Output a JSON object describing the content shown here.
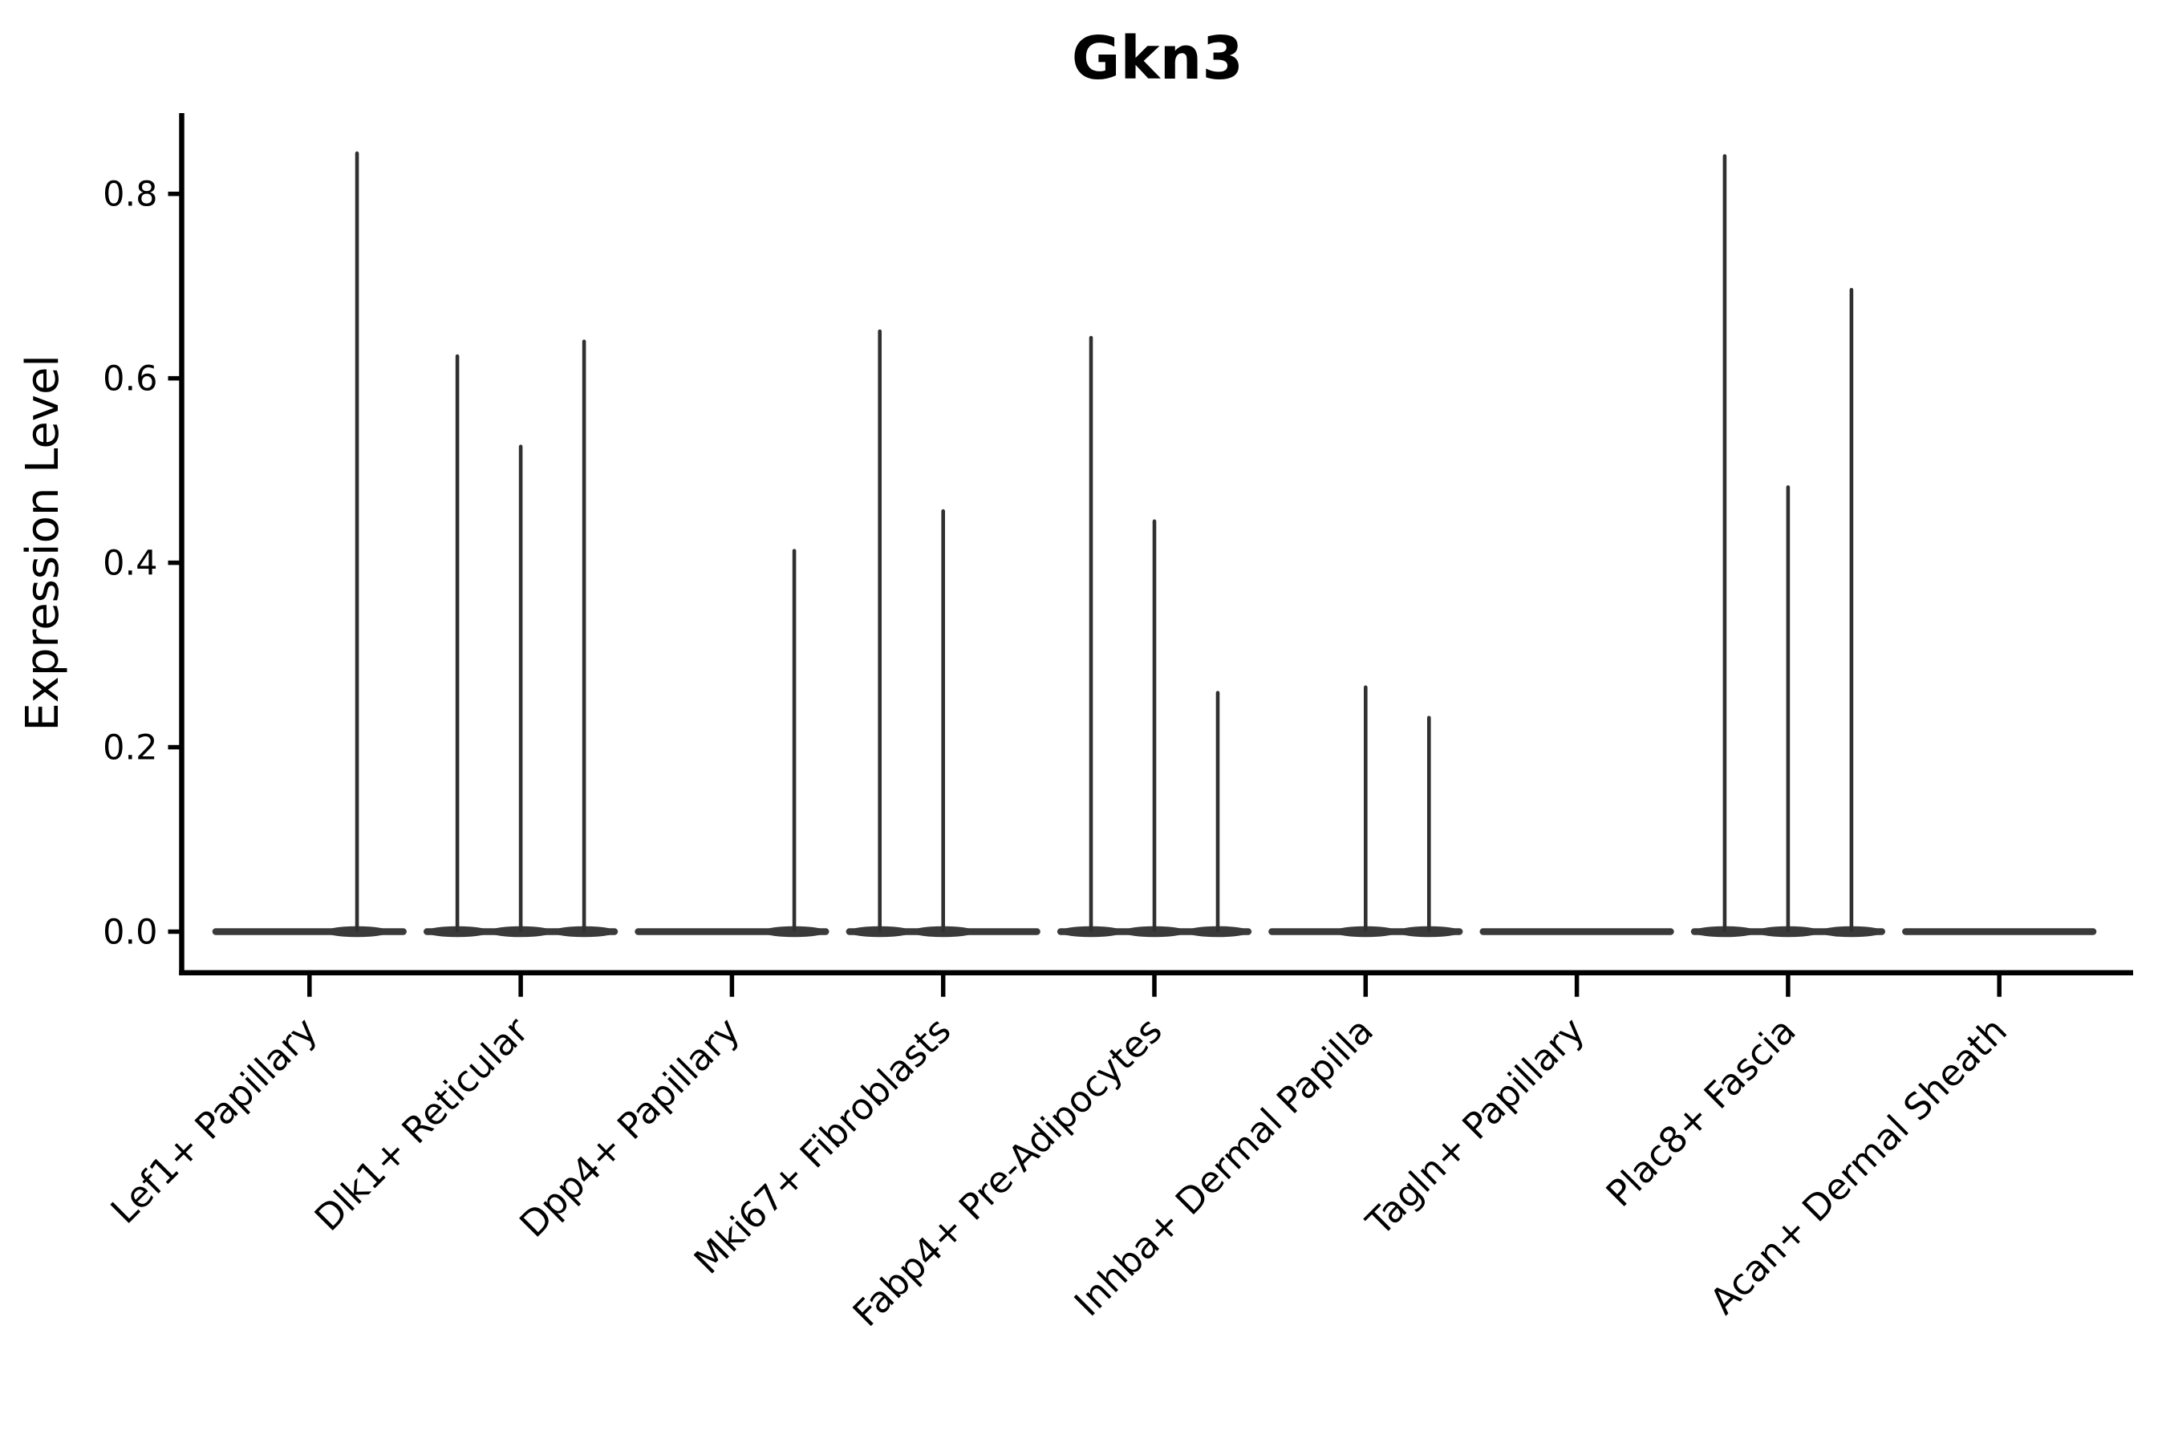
{
  "chart_data": {
    "type": "violin",
    "title": "Gkn3",
    "ylabel": "Expression Level",
    "xlabel": "",
    "yticks": [
      0.0,
      0.2,
      0.4,
      0.6,
      0.8
    ],
    "ytick_labels": [
      "0.0",
      "0.2",
      "0.4",
      "0.6",
      "0.8"
    ],
    "ylim": [
      -0.045,
      0.889
    ],
    "grid": false,
    "legend": "none",
    "x_label_rotation_deg": 45,
    "background": "#ffffff",
    "colors": {
      "violin_fill": "#3a3a3a",
      "spike": "#303030",
      "axis": "#000000",
      "text": "#000000"
    },
    "categories": [
      "Lef1+ Papillary",
      "Dlk1+ Reticular",
      "Dpp4+ Papillary",
      "Mki67+ Fibroblasts",
      "Fabp4+ Pre-Adipocytes",
      "Inhba+ Dermal Papilla",
      "Tagln+ Papillary",
      "Plac8+ Fascia",
      "Acan+ Dermal Sheath"
    ],
    "violin_group_width": 0.92,
    "groups": [
      {
        "category": "Lef1+ Papillary",
        "spikes": [
          {
            "offset": 0.225,
            "max": 0.846
          }
        ]
      },
      {
        "category": "Dlk1+ Reticular",
        "spikes": [
          {
            "offset": -0.3,
            "max": 0.626
          },
          {
            "offset": 0.0,
            "max": 0.528
          },
          {
            "offset": 0.3,
            "max": 0.642
          }
        ]
      },
      {
        "category": "Dpp4+ Papillary",
        "spikes": [
          {
            "offset": 0.295,
            "max": 0.415
          }
        ]
      },
      {
        "category": "Mki67+ Fibroblasts",
        "spikes": [
          {
            "offset": -0.3,
            "max": 0.653
          },
          {
            "offset": 0.0,
            "max": 0.458
          }
        ]
      },
      {
        "category": "Fabp4+ Pre-Adipocytes",
        "spikes": [
          {
            "offset": -0.3,
            "max": 0.646
          },
          {
            "offset": 0.0,
            "max": 0.447
          },
          {
            "offset": 0.3,
            "max": 0.261
          }
        ]
      },
      {
        "category": "Inhba+ Dermal Papilla",
        "spikes": [
          {
            "offset": 0.0,
            "max": 0.267
          },
          {
            "offset": 0.3,
            "max": 0.234
          }
        ]
      },
      {
        "category": "Tagln+ Papillary",
        "spikes": []
      },
      {
        "category": "Plac8+ Fascia",
        "spikes": [
          {
            "offset": -0.3,
            "max": 0.843
          },
          {
            "offset": 0.0,
            "max": 0.484
          },
          {
            "offset": 0.3,
            "max": 0.698
          }
        ]
      },
      {
        "category": "Acan+ Dermal Sheath",
        "spikes": []
      }
    ]
  }
}
